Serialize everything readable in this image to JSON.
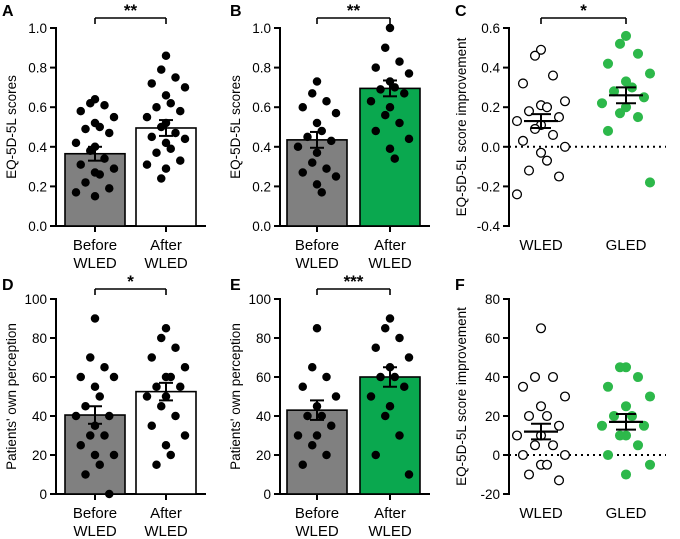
{
  "colors": {
    "before_bar": "#808080",
    "after_white": "#ffffff",
    "gled_green": "#0aa84f",
    "gled_point": "#2db84a",
    "axis": "#000000"
  },
  "chart_data": [
    {
      "panel": "A",
      "type": "bar",
      "ylabel": "EQ-5D-5L scores",
      "ylim": [
        0,
        1.0
      ],
      "yticks": [
        0.0,
        0.2,
        0.4,
        0.6,
        0.8,
        1.0
      ],
      "tick_labels": [
        "0.0",
        "0.2",
        "0.4",
        "0.6",
        "0.8",
        "1.0"
      ],
      "categories": [
        {
          "line1": "Before",
          "line2": "WLED",
          "fill": "gray"
        },
        {
          "line1": "After",
          "line2": "WLED",
          "fill": "white"
        }
      ],
      "means": [
        0.365,
        0.495
      ],
      "sem": [
        0.035,
        0.04
      ],
      "significance": "**",
      "points": [
        [
          0.64,
          0.62,
          0.61,
          0.58,
          0.55,
          0.52,
          0.5,
          0.49,
          0.47,
          0.42,
          0.4,
          0.38,
          0.34,
          0.31,
          0.29,
          0.27,
          0.26,
          0.22,
          0.19,
          0.17,
          0.15
        ],
        [
          0.86,
          0.79,
          0.75,
          0.72,
          0.7,
          0.66,
          0.62,
          0.6,
          0.58,
          0.55,
          0.52,
          0.5,
          0.47,
          0.45,
          0.44,
          0.42,
          0.39,
          0.37,
          0.33,
          0.31,
          0.29,
          0.24
        ]
      ]
    },
    {
      "panel": "B",
      "type": "bar",
      "ylabel": "EQ-5D-5L scores",
      "ylim": [
        0,
        1.0
      ],
      "yticks": [
        0.0,
        0.2,
        0.4,
        0.6,
        0.8,
        1.0
      ],
      "tick_labels": [
        "0.0",
        "0.2",
        "0.4",
        "0.6",
        "0.8",
        "1.0"
      ],
      "categories": [
        {
          "line1": "Before",
          "line2": "WLED",
          "fill": "gray"
        },
        {
          "line1": "After",
          "line2": "WLED",
          "fill": "green"
        }
      ],
      "means": [
        0.435,
        0.695
      ],
      "sem": [
        0.04,
        0.04
      ],
      "significance": "**",
      "points": [
        [
          0.73,
          0.67,
          0.63,
          0.6,
          0.57,
          0.52,
          0.48,
          0.45,
          0.43,
          0.4,
          0.37,
          0.32,
          0.29,
          0.27,
          0.25,
          0.21,
          0.17
        ],
        [
          1.0,
          0.9,
          0.83,
          0.8,
          0.77,
          0.73,
          0.7,
          0.69,
          0.67,
          0.63,
          0.6,
          0.56,
          0.52,
          0.48,
          0.44,
          0.39,
          0.34
        ]
      ]
    },
    {
      "panel": "C",
      "type": "scatter",
      "ylabel": "EQ-5D-5L score improvement",
      "ylim": [
        -0.4,
        0.6
      ],
      "yticks": [
        -0.4,
        -0.2,
        0.0,
        0.2,
        0.4,
        0.6
      ],
      "tick_labels": [
        "-0.4",
        "-0.2",
        "0.0",
        "0.2",
        "0.4",
        "0.6"
      ],
      "categories": [
        {
          "line1": "WLED",
          "style": "open"
        },
        {
          "line1": "GLED",
          "style": "green"
        }
      ],
      "means": [
        0.13,
        0.26
      ],
      "sem": [
        0.035,
        0.04
      ],
      "significance": "*",
      "zero_line": "dotted",
      "points": [
        [
          0.49,
          0.46,
          0.36,
          0.32,
          0.23,
          0.21,
          0.2,
          0.18,
          0.15,
          0.13,
          0.11,
          0.09,
          0.06,
          0.03,
          0.0,
          -0.03,
          -0.07,
          -0.12,
          -0.15,
          -0.24
        ],
        [
          0.56,
          0.52,
          0.47,
          0.42,
          0.37,
          0.33,
          0.3,
          0.28,
          0.25,
          0.22,
          0.2,
          0.17,
          0.15,
          0.08,
          -0.18
        ]
      ]
    },
    {
      "panel": "D",
      "type": "bar",
      "ylabel": "Patients' own perception",
      "ylim": [
        0,
        100
      ],
      "yticks": [
        0,
        20,
        40,
        60,
        80,
        100
      ],
      "tick_labels": [
        "0",
        "20",
        "40",
        "60",
        "80",
        "100"
      ],
      "categories": [
        {
          "line1": "Before",
          "line2": "WLED",
          "fill": "gray"
        },
        {
          "line1": "After",
          "line2": "WLED",
          "fill": "white"
        }
      ],
      "means": [
        40.5,
        52.5
      ],
      "sem": [
        4.5,
        4.5
      ],
      "significance": "*",
      "points": [
        [
          90,
          70,
          65,
          60,
          60,
          55,
          50,
          45,
          40,
          40,
          35,
          30,
          30,
          25,
          20,
          20,
          15,
          10,
          0
        ],
        [
          85,
          80,
          75,
          70,
          65,
          60,
          60,
          55,
          55,
          50,
          50,
          45,
          40,
          35,
          30,
          25,
          20,
          15
        ]
      ]
    },
    {
      "panel": "E",
      "type": "bar",
      "ylabel": "Patients' own perception",
      "ylim": [
        0,
        100
      ],
      "yticks": [
        0,
        20,
        40,
        60,
        80,
        100
      ],
      "tick_labels": [
        "0",
        "20",
        "40",
        "60",
        "80",
        "100"
      ],
      "categories": [
        {
          "line1": "Before",
          "line2": "WLED",
          "fill": "gray"
        },
        {
          "line1": "After",
          "line2": "WLED",
          "fill": "green"
        }
      ],
      "means": [
        43,
        60
      ],
      "sem": [
        5,
        5
      ],
      "significance": "***",
      "points": [
        [
          85,
          65,
          60,
          55,
          50,
          45,
          40,
          40,
          35,
          30,
          30,
          25,
          20,
          15
        ],
        [
          90,
          85,
          80,
          75,
          70,
          65,
          60,
          60,
          55,
          50,
          45,
          40,
          30,
          20,
          10
        ]
      ]
    },
    {
      "panel": "F",
      "type": "scatter",
      "ylabel": "EQ-5D-5L score improvement",
      "ylim": [
        -20,
        80
      ],
      "yticks": [
        -20,
        0,
        20,
        40,
        60,
        80
      ],
      "tick_labels": [
        "-20",
        "0",
        "20",
        "40",
        "60",
        "80"
      ],
      "categories": [
        {
          "line1": "WLED",
          "style": "open"
        },
        {
          "line1": "GLED",
          "style": "green"
        }
      ],
      "means": [
        12,
        17
      ],
      "sem": [
        4,
        4
      ],
      "zero_line": "dotted",
      "points": [
        [
          65,
          40,
          40,
          35,
          30,
          25,
          20,
          20,
          15,
          10,
          10,
          5,
          5,
          0,
          0,
          -5,
          -5,
          -10,
          -13
        ],
        [
          45,
          45,
          40,
          35,
          30,
          25,
          20,
          20,
          15,
          15,
          10,
          10,
          5,
          0,
          -5,
          -10
        ]
      ]
    }
  ]
}
